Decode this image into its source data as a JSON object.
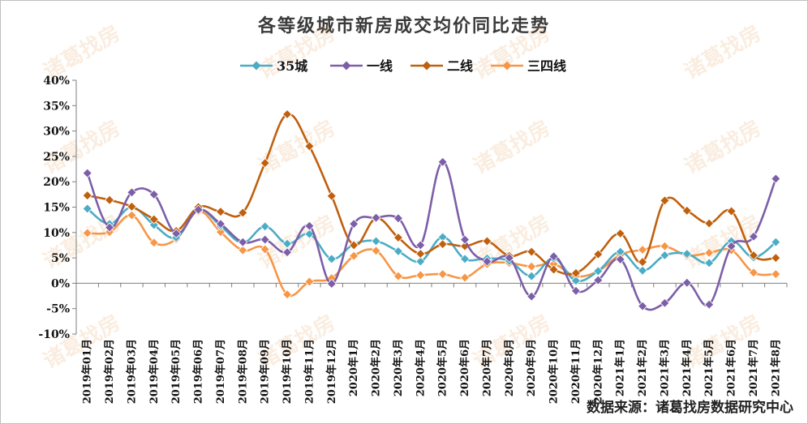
{
  "chart_data": {
    "type": "line",
    "title": "各等级城市新房成交均价同比走势",
    "source": "数据来源：诸葛找房数据研究中心",
    "watermark": "诸葛找房",
    "ylim": [
      -10,
      40
    ],
    "yticks": [
      "-10%",
      "-5%",
      "0%",
      "5%",
      "10%",
      "15%",
      "20%",
      "25%",
      "30%",
      "35%",
      "40%"
    ],
    "ytick_values": [
      -10,
      -5,
      0,
      5,
      10,
      15,
      20,
      25,
      30,
      35,
      40
    ],
    "legend_position": "top",
    "grid": false,
    "categories": [
      "2019年01月",
      "2019年02月",
      "2019年03月",
      "2019年04月",
      "2019年05月",
      "2019年06月",
      "2019年07月",
      "2019年08月",
      "2019年09月",
      "2019年10月",
      "2019年11月",
      "2019年12月",
      "2020年1月",
      "2020年2月",
      "2020年3月",
      "2020年4月",
      "2020年5月",
      "2020年6月",
      "2020年7月",
      "2020年8月",
      "2020年9月",
      "2020年10月",
      "2020年11月",
      "2020年12月",
      "2021年1月",
      "2021年2月",
      "2021年3月",
      "2021年4月",
      "2021年5月",
      "2021年6月",
      "2021年7月",
      "2021年8月"
    ],
    "series": [
      {
        "name": "35城",
        "color": "#4bacc6",
        "marker": "diamond",
        "values": [
          14.7,
          11.7,
          15.0,
          11.5,
          9.0,
          14.5,
          11.3,
          8.0,
          11.2,
          7.8,
          9.7,
          4.8,
          7.7,
          8.3,
          6.3,
          4.3,
          9.1,
          4.8,
          4.9,
          4.4,
          1.4,
          4.9,
          0.5,
          2.4,
          6.2,
          2.5,
          5.5,
          5.8,
          4.0,
          8.3,
          5.1,
          8.1
        ]
      },
      {
        "name": "一线",
        "color": "#7c5fa8",
        "marker": "diamond",
        "values": [
          21.7,
          11.0,
          17.9,
          17.5,
          9.8,
          14.5,
          11.7,
          8.1,
          8.6,
          6.1,
          11.3,
          -0.1,
          11.7,
          12.9,
          12.8,
          7.5,
          23.9,
          8.6,
          4.3,
          5.0,
          -2.6,
          5.3,
          -1.5,
          0.6,
          4.7,
          -4.5,
          -3.9,
          0.1,
          -4.2,
          7.3,
          9.2,
          20.6
        ]
      },
      {
        "name": "二线",
        "color": "#c0600e",
        "marker": "diamond",
        "values": [
          17.3,
          16.4,
          15.1,
          12.6,
          10.3,
          15.0,
          14.1,
          13.9,
          23.7,
          33.3,
          27.0,
          17.2,
          7.5,
          12.8,
          9.0,
          5.8,
          7.7,
          7.3,
          8.3,
          5.4,
          6.2,
          2.7,
          2.0,
          5.7,
          9.8,
          4.2,
          16.3,
          14.3,
          11.8,
          14.2,
          5.5,
          5.0
        ]
      },
      {
        "name": "三四线",
        "color": "#f79646",
        "marker": "diamond",
        "values": [
          9.9,
          10.1,
          13.4,
          8.0,
          8.7,
          14.2,
          10.1,
          6.5,
          6.7,
          -2.2,
          0.3,
          1.0,
          5.4,
          6.4,
          1.4,
          1.6,
          1.8,
          1.1,
          3.8,
          4.0,
          3.3,
          3.8,
          1.4,
          2.4,
          5.6,
          6.6,
          7.3,
          5.5,
          6.0,
          6.5,
          2.1,
          1.8
        ]
      }
    ]
  }
}
